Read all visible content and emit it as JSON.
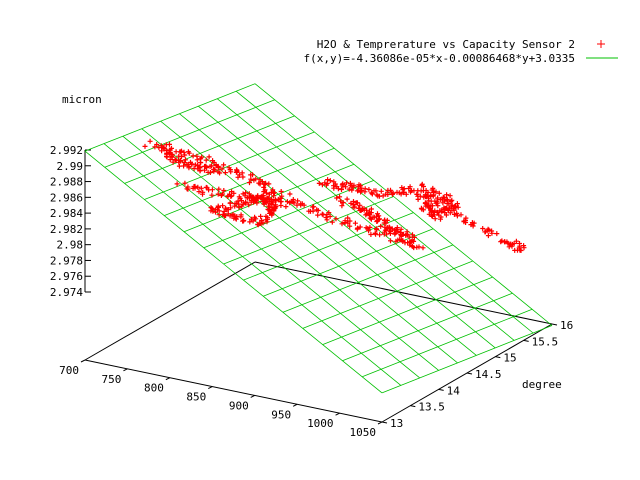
{
  "chart_data": {
    "type": "scatter",
    "subtype": "3d-surface-with-fit-plane",
    "zlabel": "micron",
    "ylabel": "degree",
    "xlabel": "",
    "x_ticks": [
      "700",
      "750",
      "800",
      "850",
      "900",
      "950",
      "1000",
      "1050"
    ],
    "y_ticks": [
      "13",
      "13.5",
      "14",
      "14.5",
      "15",
      "15.5",
      "16"
    ],
    "z_ticks": [
      "2.974",
      "2.976",
      "2.978",
      "2.98",
      "2.982",
      "2.984",
      "2.986",
      "2.988",
      "2.99",
      "2.992"
    ],
    "xlim": [
      700,
      1050
    ],
    "ylim": [
      13,
      16
    ],
    "zlim": [
      2.974,
      2.992
    ],
    "legend_placement": "top-right",
    "series": [
      {
        "name": "H2O & Temprerature vs Capacity Sensor 2",
        "kind": "points",
        "marker": "+",
        "color": "#ff0000"
      },
      {
        "name": "f(x,y)=-4.36086e-05*x-0.00086468*y+3.0335",
        "kind": "plane",
        "color": "#00c000"
      }
    ]
  }
}
